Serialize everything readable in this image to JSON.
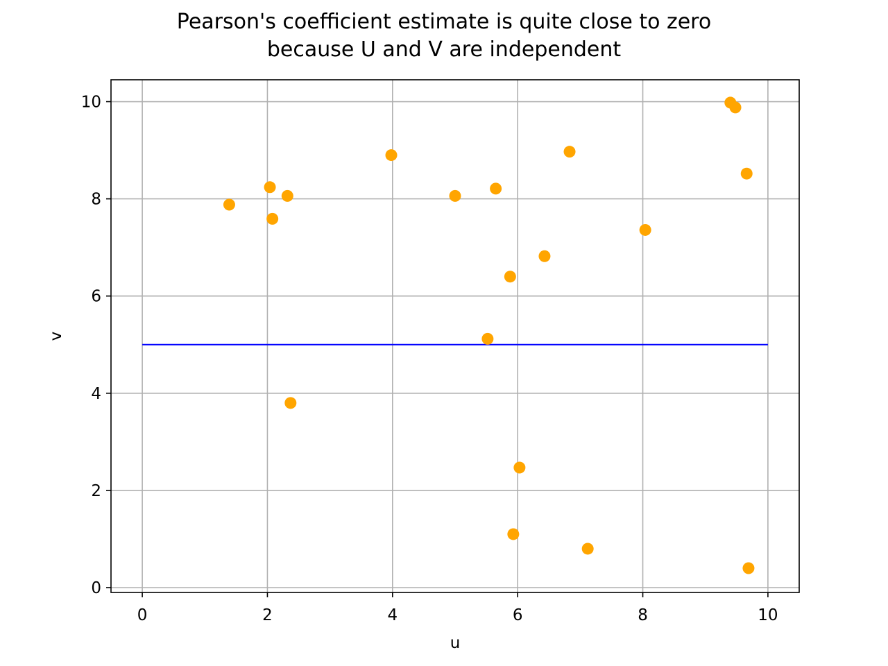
{
  "chart_data": {
    "type": "scatter",
    "title_lines": [
      "Pearson's coefficient estimate is quite close to zero",
      "because U and V are independent"
    ],
    "xlabel": "u",
    "ylabel": "v",
    "xlim": [
      -0.5,
      10.5
    ],
    "ylim": [
      -0.1,
      10.45
    ],
    "xticks": [
      0,
      2,
      4,
      6,
      8,
      10
    ],
    "yticks": [
      0,
      2,
      4,
      6,
      8,
      10
    ],
    "grid": true,
    "points": {
      "color": "#ffa500",
      "x": [
        1.39,
        2.04,
        2.08,
        2.32,
        2.37,
        3.98,
        5.0,
        5.52,
        5.65,
        5.88,
        5.93,
        6.03,
        6.43,
        6.83,
        7.12,
        8.04,
        9.4,
        9.48,
        9.66,
        9.69
      ],
      "y": [
        7.88,
        8.24,
        7.59,
        8.06,
        3.8,
        8.9,
        8.06,
        5.12,
        8.21,
        6.4,
        1.1,
        2.47,
        6.82,
        8.97,
        0.8,
        7.36,
        9.98,
        9.88,
        8.52,
        0.4
      ]
    },
    "line": {
      "color": "#0000ff",
      "x": [
        0,
        10
      ],
      "y": [
        5.0,
        5.0
      ]
    }
  }
}
